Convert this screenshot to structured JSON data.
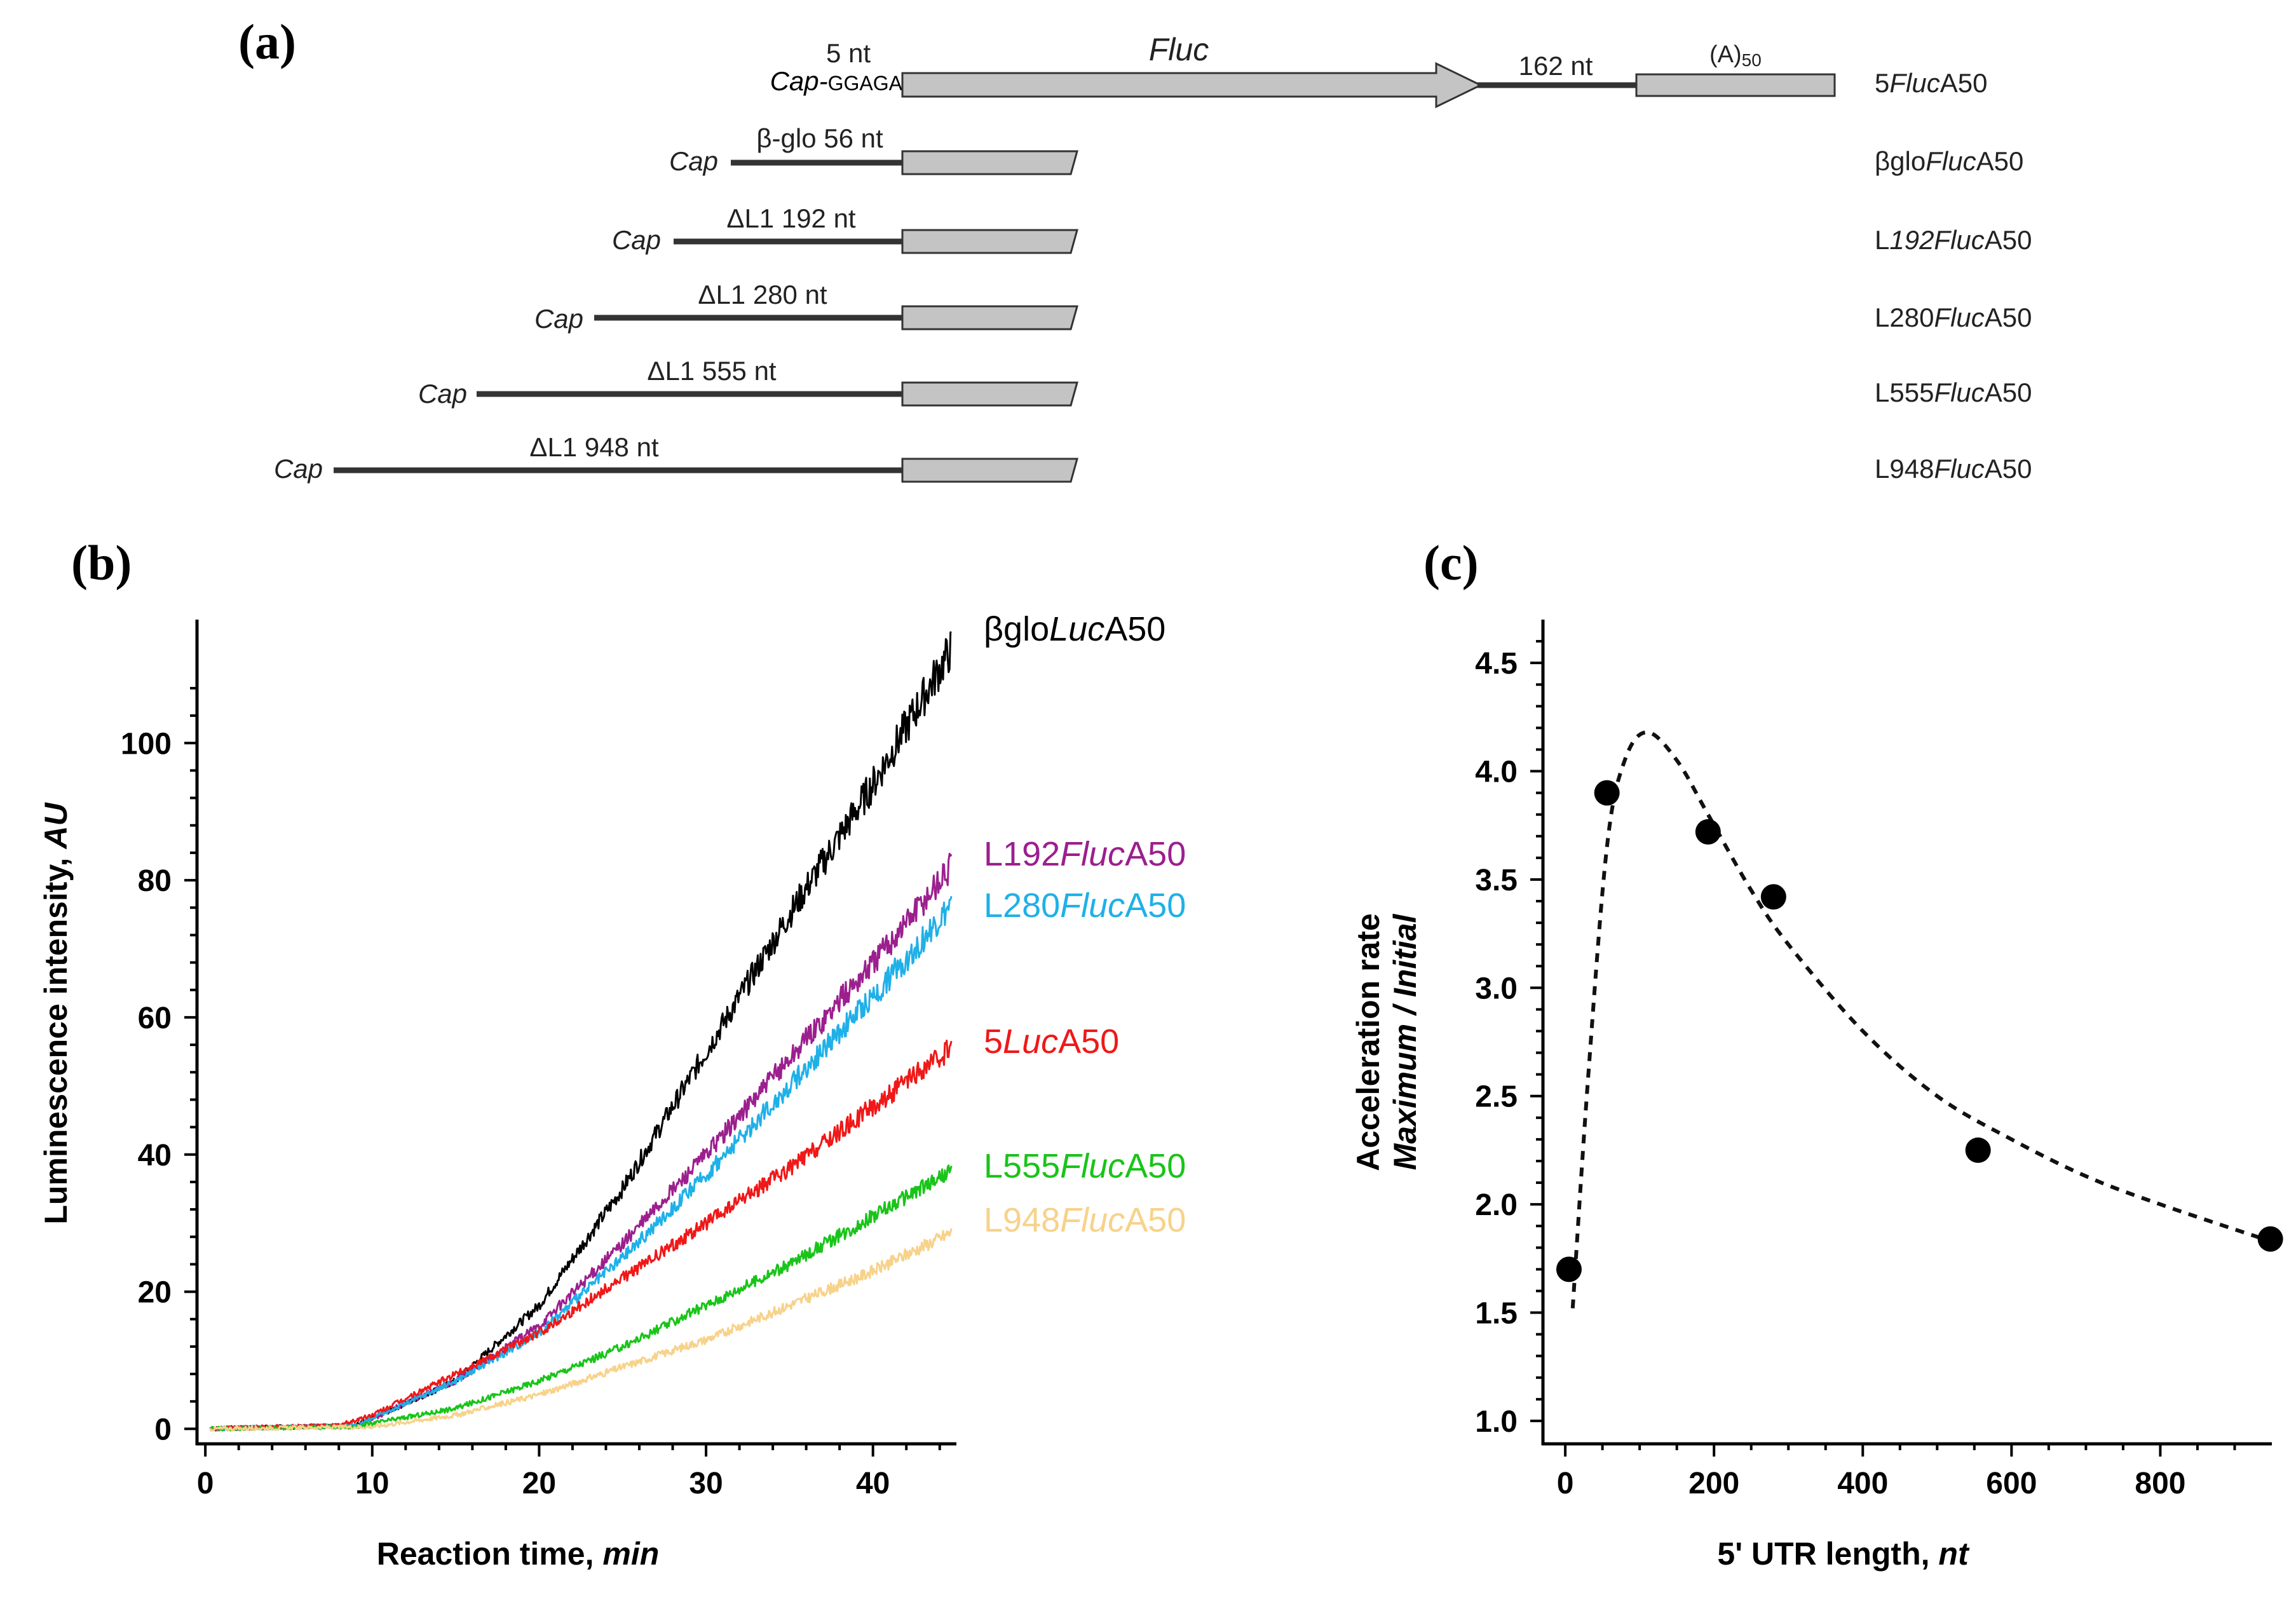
{
  "panel_a": {
    "label": "(a)",
    "constructs": [
      {
        "name_parts": [
          {
            "t": "5",
            "i": false
          },
          {
            "t": "Fluc",
            "i": true
          },
          {
            "t": "A50",
            "i": false
          }
        ],
        "leader": "5 nt",
        "cap": "Cap-",
        "seq": "GGAGA",
        "utr_nt": 5
      },
      {
        "name_parts": [
          {
            "t": "βglo",
            "i": false
          },
          {
            "t": "Fluc",
            "i": true
          },
          {
            "t": "A50",
            "i": false
          }
        ],
        "leader": "β-glo 56 nt",
        "cap": "Cap",
        "utr_nt": 56
      },
      {
        "name_parts": [
          {
            "t": "L",
            "i": false
          },
          {
            "t": "192Fluc",
            "i": true
          },
          {
            "t": "A50",
            "i": false
          }
        ],
        "leader": "ΔL1 192 nt",
        "cap": "Cap",
        "utr_nt": 192
      },
      {
        "name_parts": [
          {
            "t": "L280",
            "i": false
          },
          {
            "t": "Fluc",
            "i": true
          },
          {
            "t": "A50",
            "i": false
          }
        ],
        "leader": "ΔL1 280 nt",
        "cap": "Cap",
        "utr_nt": 280
      },
      {
        "name_parts": [
          {
            "t": "L555",
            "i": false
          },
          {
            "t": "Fluc",
            "i": true
          },
          {
            "t": "A50",
            "i": false
          }
        ],
        "leader": "ΔL1 555 nt",
        "cap": "Cap",
        "utr_nt": 555
      },
      {
        "name_parts": [
          {
            "t": "L948",
            "i": false
          },
          {
            "t": "Fluc",
            "i": true
          },
          {
            "t": "A50",
            "i": false
          }
        ],
        "leader": "ΔL1 948 nt",
        "cap": "Cap",
        "utr_nt": 948
      }
    ],
    "gene_label": "Fluc",
    "spacer_label": "162 nt",
    "polya_label_main": "(A)",
    "polya_label_sub": "50"
  },
  "chart_data": [
    {
      "panel": "(b)",
      "type": "line",
      "title": "",
      "xlabel": "Reaction time,",
      "xlabel_italic": "min",
      "ylabel": "Luminescence intensity,",
      "ylabel_italic": "AU",
      "xlim": [
        -0.5,
        45
      ],
      "ylim": [
        -2,
        118
      ],
      "xticks": [
        0,
        10,
        20,
        30,
        40
      ],
      "yticks": [
        0,
        20,
        40,
        60,
        80,
        100
      ],
      "lag_min": 9,
      "series": [
        {
          "name_parts": [
            {
              "t": "βglo",
              "i": false
            },
            {
              "t": "Luc",
              "i": true
            },
            {
              "t": "A50",
              "i": false
            }
          ],
          "color": "#000000",
          "end_value": 115,
          "curve": [
            [
              0,
              0
            ],
            [
              9,
              0.5
            ],
            [
              10,
              1.5
            ],
            [
              15,
              7
            ],
            [
              20,
              18
            ],
            [
              25,
              35
            ],
            [
              30,
              55
            ],
            [
              35,
              75
            ],
            [
              40,
              94
            ],
            [
              45,
              115
            ]
          ]
        },
        {
          "name_parts": [
            {
              "t": "L192",
              "i": false
            },
            {
              "t": "Fluc",
              "i": true
            },
            {
              "t": "A50",
              "i": false
            }
          ],
          "color": "#9c1f8e",
          "end_value": 83,
          "curve": [
            [
              0,
              0
            ],
            [
              9,
              0.5
            ],
            [
              10,
              1.5
            ],
            [
              15,
              7
            ],
            [
              20,
              15
            ],
            [
              25,
              27
            ],
            [
              30,
              40
            ],
            [
              35,
              54
            ],
            [
              40,
              68
            ],
            [
              45,
              83
            ]
          ]
        },
        {
          "name_parts": [
            {
              "t": "L280",
              "i": false
            },
            {
              "t": "Fluc",
              "i": true
            },
            {
              "t": "A50",
              "i": false
            }
          ],
          "color": "#1fb0e8",
          "end_value": 77,
          "curve": [
            [
              0,
              0
            ],
            [
              9,
              0.5
            ],
            [
              10,
              1.5
            ],
            [
              15,
              7
            ],
            [
              20,
              14
            ],
            [
              25,
              25
            ],
            [
              30,
              37
            ],
            [
              35,
              50
            ],
            [
              40,
              63
            ],
            [
              45,
              77
            ]
          ]
        },
        {
          "name_parts": [
            {
              "t": "5",
              "i": false
            },
            {
              "t": "Luc",
              "i": true
            },
            {
              "t": "A50",
              "i": false
            }
          ],
          "color": "#f01818",
          "end_value": 56,
          "curve": [
            [
              0,
              0
            ],
            [
              8,
              0.5
            ],
            [
              10,
              2
            ],
            [
              15,
              8
            ],
            [
              20,
              14
            ],
            [
              25,
              22
            ],
            [
              30,
              30
            ],
            [
              35,
              38
            ],
            [
              40,
              47
            ],
            [
              45,
              56
            ]
          ]
        },
        {
          "name_parts": [
            {
              "t": "L555",
              "i": false
            },
            {
              "t": "Fluc",
              "i": true
            },
            {
              "t": "A50",
              "i": false
            }
          ],
          "color": "#19c419",
          "end_value": 38,
          "curve": [
            [
              0,
              0
            ],
            [
              9,
              0.3
            ],
            [
              10,
              0.8
            ],
            [
              15,
              3
            ],
            [
              20,
              7
            ],
            [
              25,
              12
            ],
            [
              30,
              18
            ],
            [
              35,
              24
            ],
            [
              40,
              31
            ],
            [
              45,
              38
            ]
          ]
        },
        {
          "name_parts": [
            {
              "t": "L948",
              "i": false
            },
            {
              "t": "Fluc",
              "i": true
            },
            {
              "t": "A50",
              "i": false
            }
          ],
          "color": "#f7d28a",
          "end_value": 29,
          "curve": [
            [
              0,
              0
            ],
            [
              10,
              0.3
            ],
            [
              15,
              2
            ],
            [
              20,
              5
            ],
            [
              25,
              9
            ],
            [
              30,
              13
            ],
            [
              35,
              18
            ],
            [
              40,
              23
            ],
            [
              45,
              29
            ]
          ]
        }
      ]
    },
    {
      "panel": "(c)",
      "type": "scatter",
      "title": "",
      "xlabel": "5' UTR length,",
      "xlabel_italic": "nt",
      "ylabel": "Acceleration rate",
      "ylabel2": "Maximum / Initial",
      "xlim": [
        -30,
        950
      ],
      "ylim": [
        0.9,
        4.7
      ],
      "xticks": [
        0,
        200,
        400,
        600,
        800
      ],
      "yticks": [
        1.0,
        1.5,
        2.0,
        2.5,
        3.0,
        3.5,
        4.0,
        4.5
      ],
      "ytick_labels": [
        "1.0",
        "1.5",
        "2.0",
        "2.5",
        "3.0",
        "3.5",
        "4.0",
        "4.5"
      ],
      "points": [
        {
          "x": 5,
          "y": 1.7
        },
        {
          "x": 56,
          "y": 3.9
        },
        {
          "x": 192,
          "y": 3.72
        },
        {
          "x": 280,
          "y": 3.42
        },
        {
          "x": 555,
          "y": 2.25
        },
        {
          "x": 948,
          "y": 1.84
        }
      ],
      "fit": {
        "style": "dashed",
        "x": [
          10,
          30,
          56,
          80,
          110,
          150,
          192,
          250,
          300,
          400,
          500,
          600,
          700,
          800,
          948
        ],
        "y": [
          1.52,
          2.55,
          3.65,
          4.05,
          4.18,
          4.05,
          3.8,
          3.45,
          3.2,
          2.8,
          2.5,
          2.3,
          2.13,
          2.0,
          1.83
        ]
      }
    }
  ]
}
